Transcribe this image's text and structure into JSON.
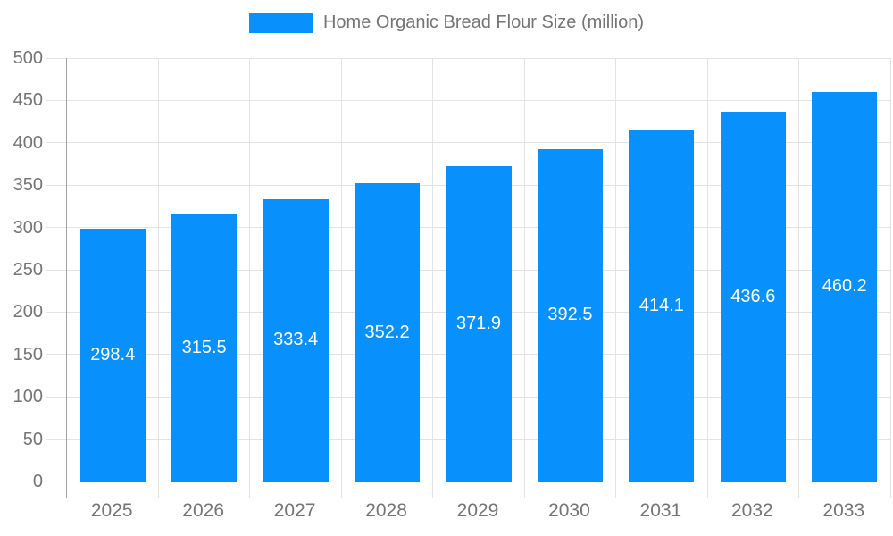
{
  "legend": {
    "label": "Home Organic Bread Flour Size (million)"
  },
  "colors": {
    "bar": "#0890fc",
    "bar_label_text": "#ffffff",
    "axis_line": "#a3a3a3",
    "gridline": "#e3e3e3",
    "axis_label_text": "#757575"
  },
  "chart_data": {
    "type": "bar",
    "title": "Home Organic Bread Flour Size (million)",
    "categories": [
      "2025",
      "2026",
      "2027",
      "2028",
      "2029",
      "2030",
      "2031",
      "2032",
      "2033"
    ],
    "values": [
      298.4,
      315.5,
      333.4,
      352.2,
      371.9,
      392.5,
      414.1,
      436.6,
      460.2
    ],
    "bar_value_labels": [
      "298.4",
      "315.5",
      "333.4",
      "352.2",
      "371.9",
      "392.5",
      "414.1",
      "436.6",
      "460.2"
    ],
    "xlabel": "",
    "ylabel": "",
    "ylim": [
      0,
      500
    ],
    "ytick_step": 50,
    "yticks": [
      0,
      50,
      100,
      150,
      200,
      250,
      300,
      350,
      400,
      450,
      500
    ],
    "grid": true,
    "legend_position": "top"
  }
}
